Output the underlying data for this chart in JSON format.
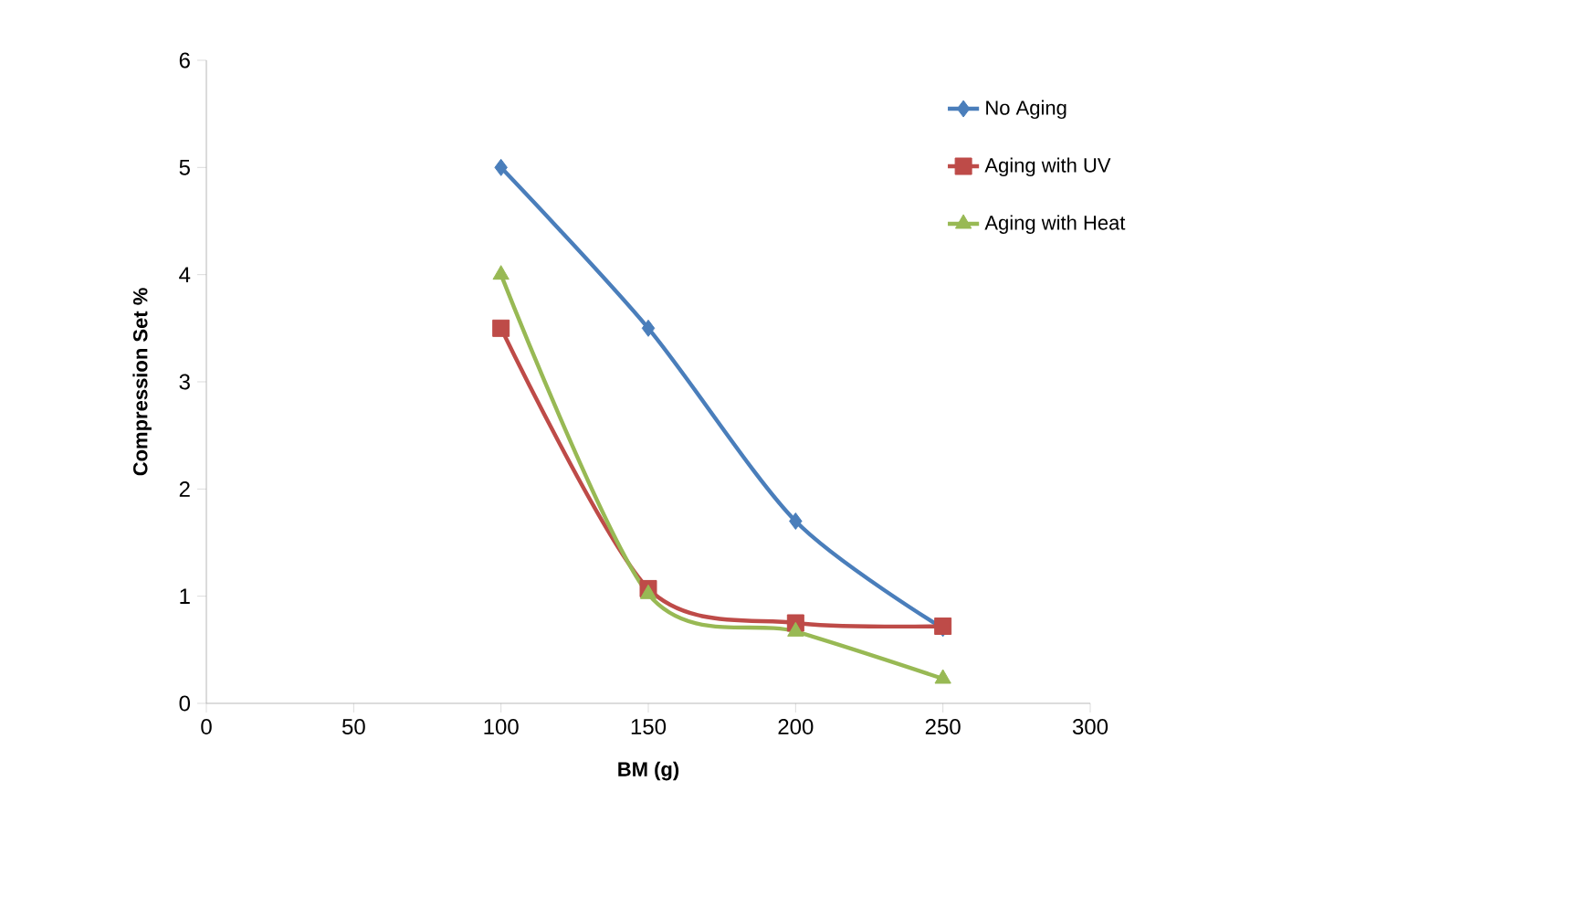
{
  "chart_data": {
    "type": "line",
    "xlabel": "BM (g)",
    "ylabel": "Compression Set %",
    "xlim": [
      0,
      300
    ],
    "xticks": [
      0,
      50,
      100,
      150,
      200,
      250,
      300
    ],
    "ylim": [
      0,
      6
    ],
    "yticks": [
      0,
      1,
      2,
      3,
      4,
      5,
      6
    ],
    "x": [
      100,
      150,
      200,
      250
    ],
    "series": [
      {
        "name": "No Aging",
        "color": "#4a7ebb",
        "marker": "diamond",
        "values": [
          5.0,
          3.5,
          1.7,
          0.7
        ]
      },
      {
        "name": "Aging with UV",
        "color": "#be4b48",
        "marker": "square",
        "values": [
          3.5,
          1.07,
          0.75,
          0.72
        ]
      },
      {
        "name": "Aging with Heat",
        "color": "#98b954",
        "marker": "triangle",
        "values": [
          4.0,
          1.02,
          0.67,
          0.23
        ]
      }
    ],
    "grid": false,
    "legend": "top right",
    "line_style": "solid"
  }
}
